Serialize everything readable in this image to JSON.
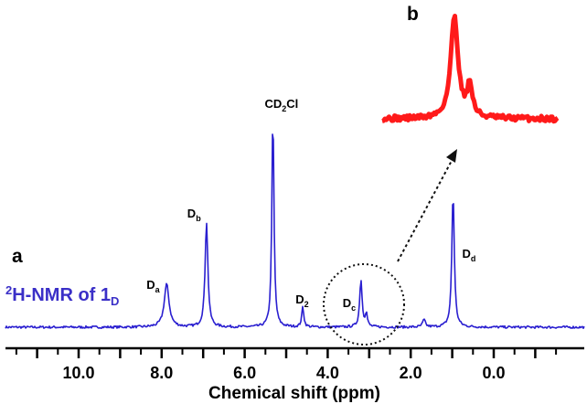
{
  "chart_data": {
    "type": "line",
    "title": "",
    "xlabel": "Chemical shift (ppm)",
    "ylabel": "",
    "xlim": [
      12.0,
      -1.7
    ],
    "x_reversed": true,
    "xticks": [
      {
        "value": 10.0,
        "label": "10.0"
      },
      {
        "value": 8.0,
        "label": "8.0"
      },
      {
        "value": 6.0,
        "label": "6.0"
      },
      {
        "value": 4.0,
        "label": "4.0"
      },
      {
        "value": 2.0,
        "label": "2.0"
      },
      {
        "value": 0.0,
        "label": "0.0"
      }
    ],
    "series": [
      {
        "name": "2H-NMR of 1D",
        "label_parts": {
          "sup": "2",
          "main": "H-NMR of 1",
          "sub": "D"
        },
        "color": "#2a1fd0",
        "baseline": 0,
        "peaks": [
          {
            "x": 7.88,
            "height": 47,
            "width": 0.07,
            "label": "D",
            "label_sub": "a"
          },
          {
            "x": 6.92,
            "height": 115,
            "width": 0.04,
            "label": "D",
            "label_sub": "b"
          },
          {
            "x": 5.32,
            "height": 235,
            "width": 0.03,
            "label": "CD",
            "label_sub": "2",
            "label_tail": "Cl"
          },
          {
            "x": 4.6,
            "height": 22,
            "width": 0.03,
            "label": "D",
            "label_sub": "2"
          },
          {
            "x": 3.2,
            "height": 52,
            "width": 0.035,
            "label": "D",
            "label_sub": "c"
          },
          {
            "x": 3.07,
            "height": 14,
            "width": 0.03
          },
          {
            "x": 1.68,
            "height": 8,
            "width": 0.04
          },
          {
            "x": 0.98,
            "height": 148,
            "width": 0.035,
            "label": "D",
            "label_sub": "d"
          }
        ]
      }
    ],
    "inset": {
      "panel": "b",
      "color": "#ff1a1a",
      "description_of": "zoom of D_c region",
      "peaks": [
        {
          "x": 0.0,
          "height": 1.0,
          "width": 0.08
        },
        {
          "x": 0.28,
          "height": 0.3,
          "width": 0.06
        }
      ]
    },
    "panels": [
      "a",
      "b"
    ],
    "grid": false,
    "legend": "none"
  }
}
